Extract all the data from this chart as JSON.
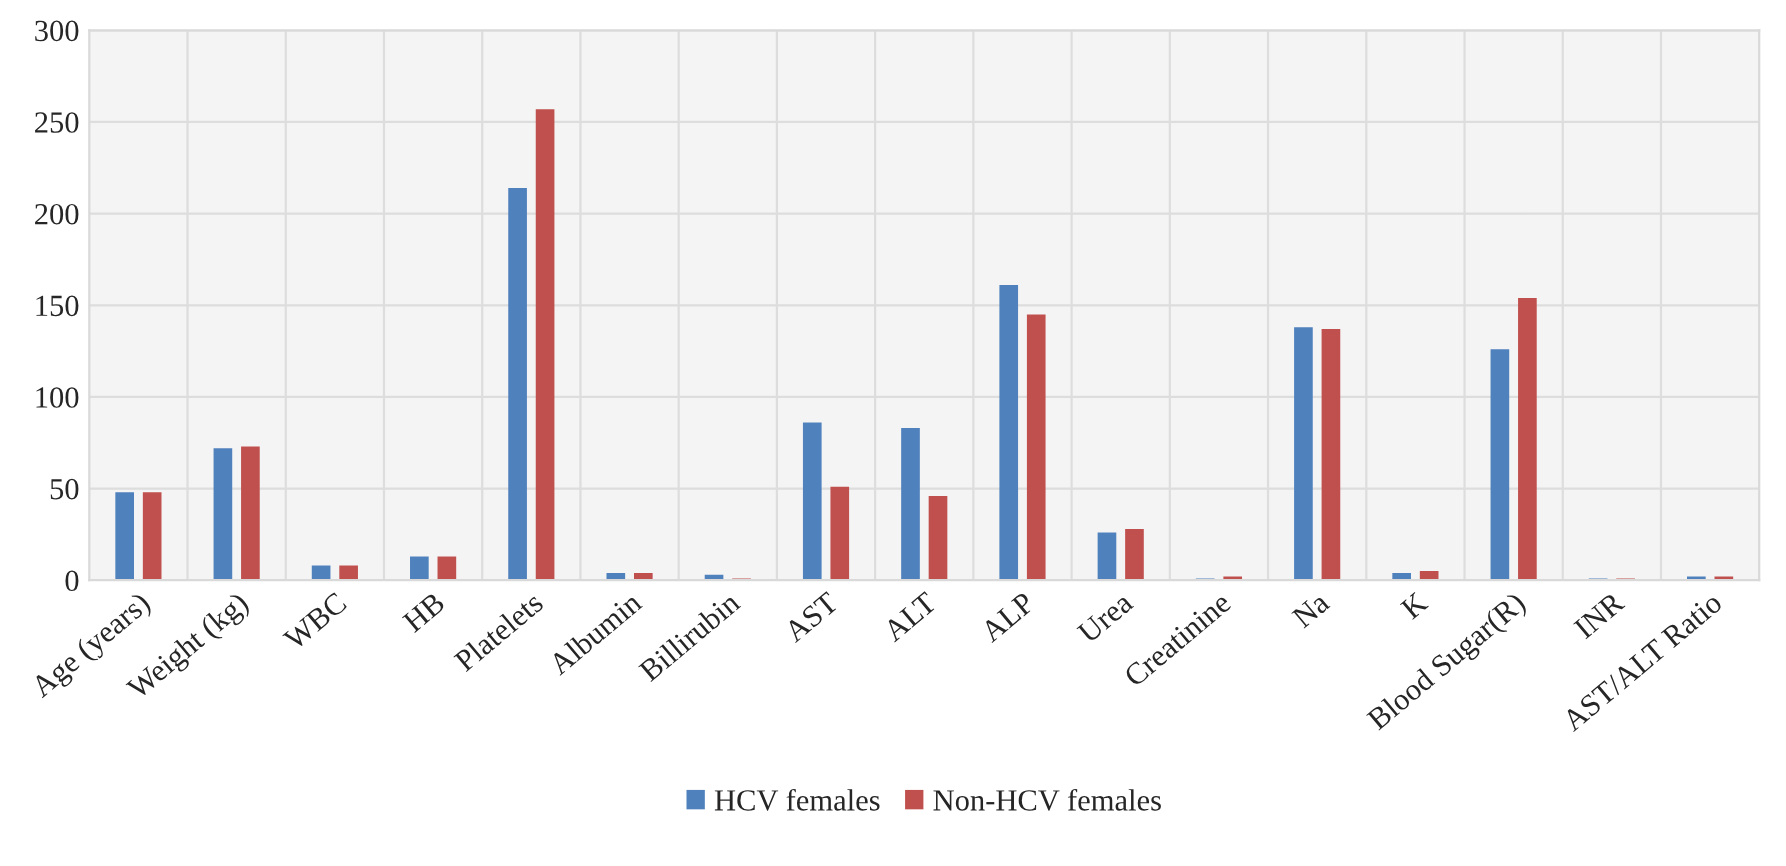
{
  "chart_data": {
    "type": "bar",
    "categories": [
      "Age (years)",
      "Weight (kg)",
      "WBC",
      "HB",
      "Platelets",
      "Albumin",
      "Billirubin",
      "AST",
      "ALT",
      "ALP",
      "Urea",
      "Creatinine",
      "Na",
      "K",
      "Blood Sugar(R)",
      "INR",
      "AST/ALT Ratio"
    ],
    "series": [
      {
        "name": "HCV females",
        "color": "#4f81bd",
        "values": [
          48,
          72,
          8,
          13,
          214,
          4,
          3,
          86,
          83,
          161,
          26,
          1,
          138,
          4,
          126,
          1,
          2
        ]
      },
      {
        "name": "Non-HCV females",
        "color": "#c0504d",
        "values": [
          48,
          73,
          8,
          13,
          257,
          4,
          1,
          51,
          46,
          145,
          28,
          2,
          137,
          5,
          154,
          1,
          2
        ]
      }
    ],
    "ylim": [
      0,
      300
    ],
    "yticks": [
      0,
      50,
      100,
      150,
      200,
      250,
      300
    ],
    "grid": true,
    "legend": "bottom"
  }
}
